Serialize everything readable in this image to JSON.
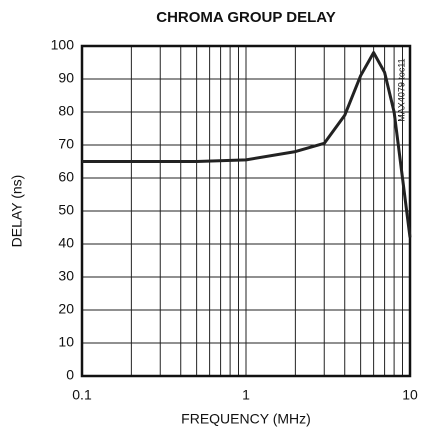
{
  "chart_data": {
    "type": "line",
    "title": "CHROMA GROUP DELAY",
    "x_label": "FREQUENCY (MHz)",
    "y_label": "DELAY (ns)",
    "annotation": "MAX4079 toc11",
    "x": [
      0.1,
      0.2,
      0.5,
      1,
      2,
      3,
      4,
      5,
      6,
      7,
      8,
      9,
      10
    ],
    "series": [
      {
        "name": "DELAY",
        "color": "#222222",
        "values": [
          65,
          65,
          65,
          65.5,
          68,
          70.5,
          79,
          91,
          98,
          92,
          80,
          60,
          42
        ]
      }
    ],
    "xscale": "log",
    "xlim": [
      0.1,
      10
    ],
    "xticks": [
      0.1,
      1,
      10
    ],
    "ylim": [
      0,
      100
    ],
    "yticks": [
      0,
      10,
      20,
      30,
      40,
      50,
      60,
      70,
      80,
      90,
      100
    ],
    "grid": true
  }
}
